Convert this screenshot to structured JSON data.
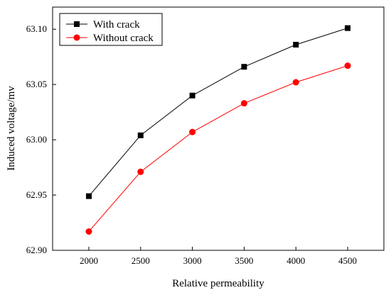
{
  "chart_data": {
    "type": "line",
    "x": [
      2000,
      2500,
      3000,
      3500,
      4000,
      4500
    ],
    "series": [
      {
        "name": "With crack",
        "values": [
          62.949,
          63.004,
          63.04,
          63.066,
          63.086,
          63.101
        ],
        "color": "#000000",
        "marker": "square"
      },
      {
        "name": "Without crack",
        "values": [
          62.917,
          62.971,
          63.007,
          63.033,
          63.052,
          63.067
        ],
        "color": "#ff0000",
        "marker": "circle"
      }
    ],
    "xlabel": "Relative permeability",
    "ylabel": "Induced voltage/mv",
    "xlim": [
      1650,
      4850
    ],
    "ylim": [
      62.9,
      63.12
    ],
    "xticks": [
      "2000",
      "2500",
      "3000",
      "3500",
      "4000",
      "4500"
    ],
    "yticks": [
      "62.90",
      "62.95",
      "63.00",
      "63.05",
      "63.10"
    ],
    "grid": false,
    "legend_position": "top-left"
  }
}
